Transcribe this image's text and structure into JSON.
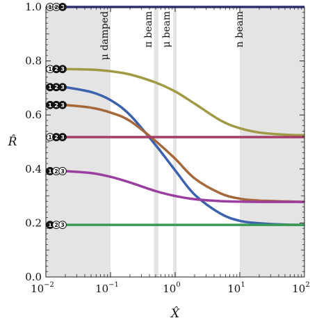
{
  "chart_data": {
    "type": "line",
    "title": "",
    "xlabel": "X̂",
    "ylabel": "R̂",
    "xscale": "log",
    "xlim": [
      0.01,
      100
    ],
    "ylim": [
      0.0,
      1.0
    ],
    "grid": false,
    "legend": "none",
    "x_ticks": [
      {
        "base": "10",
        "exp": "−2",
        "value": 0.01
      },
      {
        "base": "10",
        "exp": "−1",
        "value": 0.1
      },
      {
        "base": "10",
        "exp": "0",
        "value": 1
      },
      {
        "base": "10",
        "exp": "1",
        "value": 10
      },
      {
        "base": "10",
        "exp": "2",
        "value": 100
      }
    ],
    "y_ticks": [
      "0.0",
      "0.2",
      "0.4",
      "0.6",
      "0.8",
      "1.0"
    ],
    "bands": [
      {
        "label": "",
        "x_start": 0.01,
        "x_end": 0.1
      },
      {
        "label": "μ damped",
        "x_start": 0.1,
        "x_end": 0.1
      },
      {
        "label": "π beam",
        "x_start": 0.47,
        "x_end": 0.55
      },
      {
        "label": "μ beam",
        "x_start": 0.93,
        "x_end": 1.05
      },
      {
        "label": "n beam",
        "x_start": 10,
        "x_end": 100
      }
    ],
    "series": [
      {
        "color": "#3a3a9c",
        "x": [
          0.01,
          0.1,
          1,
          10,
          100
        ],
        "y": [
          1.0,
          1.0,
          1.0,
          1.0,
          1.0
        ]
      },
      {
        "color": "#a09a45",
        "x": [
          0.02,
          0.05,
          0.1,
          0.2,
          0.5,
          1,
          2,
          5,
          10,
          20,
          50,
          100
        ],
        "y": [
          0.77,
          0.768,
          0.762,
          0.75,
          0.72,
          0.687,
          0.642,
          0.58,
          0.551,
          0.535,
          0.527,
          0.525
        ]
      },
      {
        "color": "#3c62ad",
        "x": [
          0.02,
          0.05,
          0.1,
          0.2,
          0.5,
          1,
          2,
          5,
          10,
          20,
          50,
          100
        ],
        "y": [
          0.703,
          0.685,
          0.655,
          0.6,
          0.488,
          0.395,
          0.305,
          0.235,
          0.208,
          0.199,
          0.194,
          0.193
        ]
      },
      {
        "color": "#a5683a",
        "x": [
          0.02,
          0.05,
          0.1,
          0.2,
          0.5,
          1,
          2,
          5,
          10,
          20,
          50,
          100
        ],
        "y": [
          0.637,
          0.627,
          0.609,
          0.578,
          0.503,
          0.438,
          0.365,
          0.31,
          0.29,
          0.283,
          0.28,
          0.278
        ]
      },
      {
        "color": "#a43c68",
        "x": [
          0.02,
          0.05,
          0.1,
          0.2,
          0.5,
          1,
          2,
          5,
          10,
          20,
          50,
          100
        ],
        "y": [
          0.518,
          0.518,
          0.518,
          0.518,
          0.518,
          0.518,
          0.518,
          0.518,
          0.518,
          0.518,
          0.518,
          0.518
        ]
      },
      {
        "color": "#9a3fa0",
        "x": [
          0.02,
          0.05,
          0.1,
          0.2,
          0.5,
          1,
          2,
          5,
          10,
          20,
          50,
          100
        ],
        "y": [
          0.392,
          0.385,
          0.371,
          0.35,
          0.318,
          0.3,
          0.288,
          0.281,
          0.279,
          0.278,
          0.278,
          0.278
        ]
      },
      {
        "color": "#3a9a55",
        "x": [
          0.02,
          0.05,
          0.1,
          0.2,
          0.5,
          1,
          2,
          5,
          10,
          20,
          50,
          100
        ],
        "y": [
          0.193,
          0.193,
          0.193,
          0.193,
          0.193,
          0.193,
          0.193,
          0.193,
          0.193,
          0.193,
          0.193,
          0.193
        ]
      }
    ],
    "markers": [
      {
        "y": 1.0,
        "labels": [
          "1",
          "2",
          "3"
        ],
        "filled": [
          false,
          false,
          true
        ]
      },
      {
        "y": 0.77,
        "labels": [
          "1",
          "2",
          "3"
        ],
        "filled": [
          false,
          true,
          true
        ]
      },
      {
        "y": 0.703,
        "labels": [
          "1",
          "2",
          "3"
        ],
        "filled": [
          true,
          true,
          true
        ]
      },
      {
        "y": 0.637,
        "labels": [
          "1",
          "2",
          "3"
        ],
        "filled": [
          true,
          true,
          true
        ]
      },
      {
        "y": 0.518,
        "labels": [
          "1",
          "2",
          "3"
        ],
        "filled": [
          false,
          true,
          true
        ]
      },
      {
        "y": 0.392,
        "labels": [
          "1",
          "2",
          "3"
        ],
        "filled": [
          true,
          false,
          false
        ]
      },
      {
        "y": 0.193,
        "labels": [
          "1",
          "2",
          "3"
        ],
        "filled": [
          true,
          false,
          false
        ]
      }
    ]
  }
}
